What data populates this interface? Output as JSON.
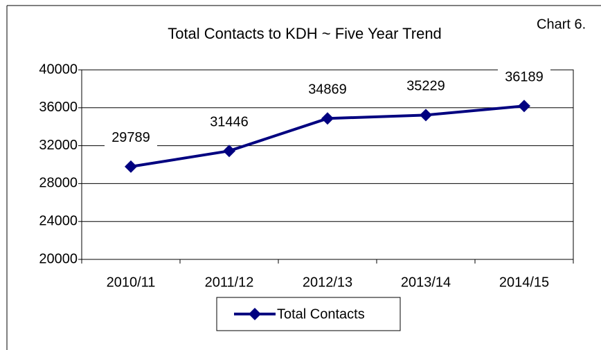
{
  "chart_data": {
    "type": "line",
    "title": "Total Contacts to KDH ~ Five Year Trend",
    "annotation": "Chart 6.",
    "categories": [
      "2010/11",
      "2011/12",
      "2012/13",
      "2013/14",
      "2014/15"
    ],
    "series": [
      {
        "name": "Total Contacts",
        "color": "#000080",
        "values": [
          29789,
          31446,
          34869,
          35229,
          36189
        ]
      }
    ],
    "ylim": [
      20000,
      40000
    ],
    "yticks": [
      20000,
      24000,
      28000,
      32000,
      36000,
      40000
    ],
    "grid": true,
    "legend": "bottom"
  }
}
